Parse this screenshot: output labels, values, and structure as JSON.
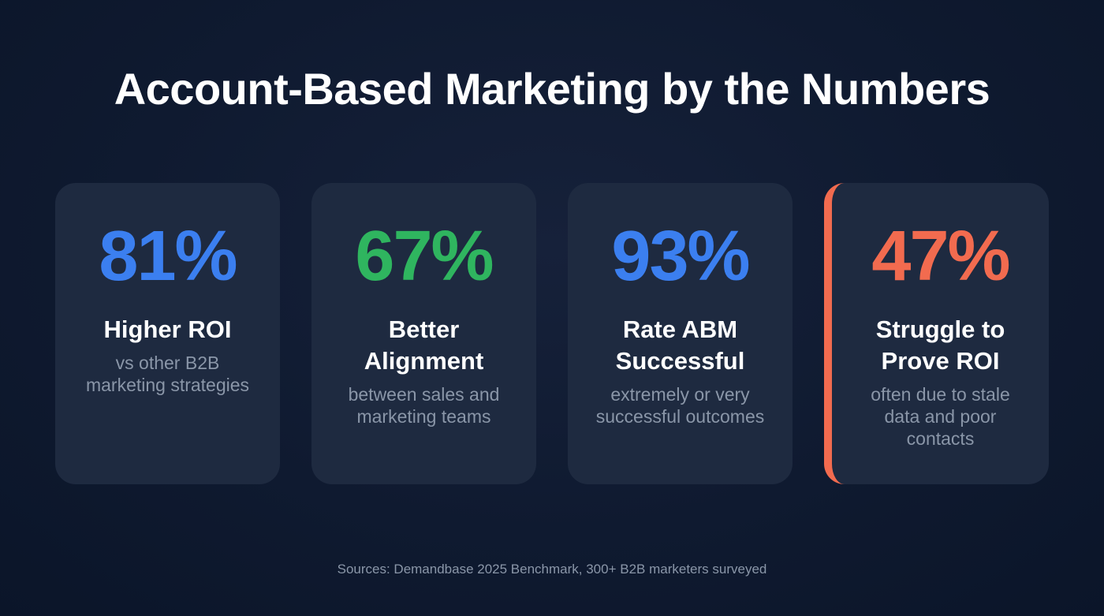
{
  "title": "Account-Based Marketing by the Numbers",
  "cards": [
    {
      "value": "81%",
      "color": "#3b7ff0",
      "label": "Higher ROI",
      "desc": "vs other B2B marketing strategies"
    },
    {
      "value": "67%",
      "color": "#2fb55f",
      "label": "Better Alignment",
      "desc": "between sales and marketing teams"
    },
    {
      "value": "93%",
      "color": "#3b7ff0",
      "label": "Rate ABM Successful",
      "desc": "extremely or very successful outcomes"
    },
    {
      "value": "47%",
      "color": "#f26b4f",
      "label": "Struggle to Prove ROI",
      "desc": "often due to stale data and poor contacts",
      "accent_border": "#f26b4f"
    }
  ],
  "footer": "Sources: Demandbase 2025 Benchmark, 300+ B2B marketers surveyed"
}
